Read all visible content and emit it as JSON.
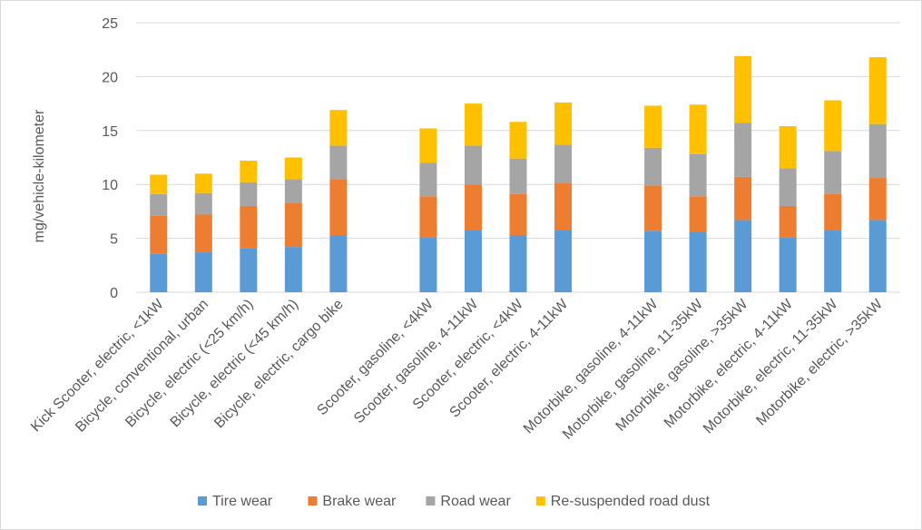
{
  "chart_data": {
    "type": "bar",
    "stacked": true,
    "title": "",
    "xlabel": "",
    "ylabel": "mg/vehicle-kilometer",
    "ylim": [
      0,
      25
    ],
    "yticks": [
      0,
      5,
      10,
      15,
      20,
      25
    ],
    "grid": true,
    "legend_position": "bottom",
    "groups": [
      [
        "Kick Scooter, electric, <1kW",
        "Bicycle, conventional, urban",
        "Bicycle, electric (<25 km/h)",
        "Bicycle, electric (<45 km/h)",
        "Bicycle, electric, cargo bike"
      ],
      [
        "Scooter, gasoline, <4kW",
        "Scooter, gasoline, 4-11kW",
        "Scooter, electric, <4kW",
        "Scooter, electric, 4-11kW"
      ],
      [
        "Motorbike, gasoline, 4-11kW",
        "Motorbike, gasoline, 11-35kW",
        "Motorbike, gasoline, >35kW",
        "Motorbike, electric, 4-11kW",
        "Motorbike, electric, 11-35kW",
        "Motorbike, electric, >35kW"
      ]
    ],
    "categories": [
      "Kick Scooter, electric, <1kW",
      "Bicycle, conventional, urban",
      "Bicycle, electric (<25 km/h)",
      "Bicycle, electric (<45 km/h)",
      "Bicycle, electric, cargo bike",
      "Scooter, gasoline, <4kW",
      "Scooter, gasoline, 4-11kW",
      "Scooter, electric, <4kW",
      "Scooter, electric, 4-11kW",
      "Motorbike, gasoline, 4-11kW",
      "Motorbike, gasoline, 11-35kW",
      "Motorbike, gasoline, >35kW",
      "Motorbike, electric, 4-11kW",
      "Motorbike, electric, 11-35kW",
      "Motorbike, electric, >35kW"
    ],
    "series": [
      {
        "name": "Tire wear",
        "color": "#5b9bd5",
        "values": [
          3.6,
          3.7,
          4.1,
          4.2,
          5.3,
          5.1,
          5.8,
          5.3,
          5.8,
          5.7,
          5.6,
          6.7,
          5.1,
          5.8,
          6.7
        ]
      },
      {
        "name": "Brake wear",
        "color": "#ed7d31",
        "values": [
          3.5,
          3.5,
          3.9,
          4.1,
          5.2,
          3.8,
          4.2,
          3.8,
          4.3,
          4.2,
          3.3,
          4.0,
          2.9,
          3.3,
          3.9
        ]
      },
      {
        "name": "Road wear",
        "color": "#a5a5a5",
        "values": [
          2.0,
          2.0,
          2.2,
          2.2,
          3.1,
          3.1,
          3.6,
          3.3,
          3.6,
          3.5,
          3.9,
          5.0,
          3.5,
          4.0,
          5.0
        ]
      },
      {
        "name": "Re-suspended road dust",
        "color": "#ffc000",
        "values": [
          1.8,
          1.8,
          2.0,
          2.0,
          3.3,
          3.2,
          3.9,
          3.4,
          3.9,
          3.9,
          4.6,
          6.2,
          3.9,
          4.7,
          6.2
        ]
      }
    ]
  }
}
